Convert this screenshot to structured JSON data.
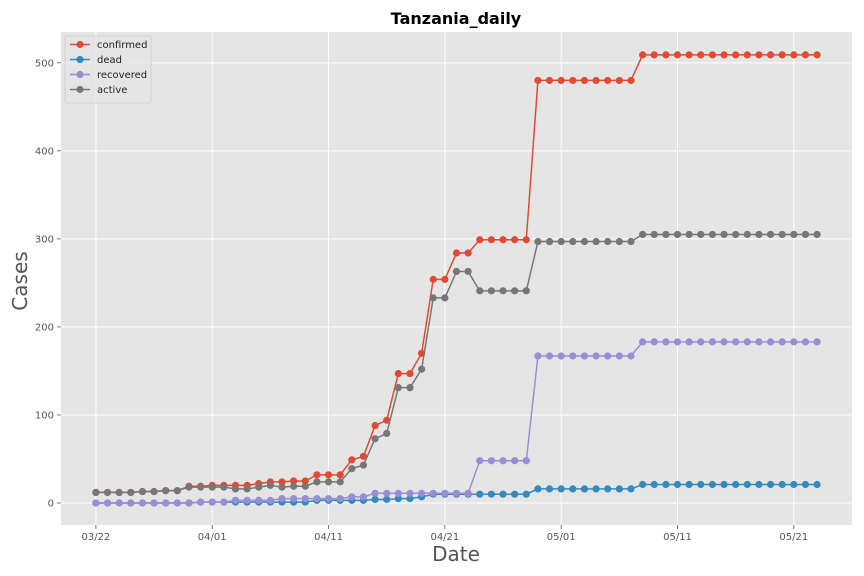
{
  "chart_data": {
    "type": "line",
    "title": "Tanzania_daily",
    "xlabel": "Date",
    "ylabel": "Cases",
    "x": [
      "2020-03-22",
      "2020-03-23",
      "2020-03-24",
      "2020-03-25",
      "2020-03-26",
      "2020-03-27",
      "2020-03-28",
      "2020-03-29",
      "2020-03-30",
      "2020-03-31",
      "2020-04-01",
      "2020-04-02",
      "2020-04-03",
      "2020-04-04",
      "2020-04-05",
      "2020-04-06",
      "2020-04-07",
      "2020-04-08",
      "2020-04-09",
      "2020-04-10",
      "2020-04-11",
      "2020-04-12",
      "2020-04-13",
      "2020-04-14",
      "2020-04-15",
      "2020-04-16",
      "2020-04-17",
      "2020-04-18",
      "2020-04-19",
      "2020-04-20",
      "2020-04-21",
      "2020-04-22",
      "2020-04-23",
      "2020-04-24",
      "2020-04-25",
      "2020-04-26",
      "2020-04-27",
      "2020-04-28",
      "2020-04-29",
      "2020-04-30",
      "2020-05-01",
      "2020-05-02",
      "2020-05-03",
      "2020-05-04",
      "2020-05-05",
      "2020-05-06",
      "2020-05-07",
      "2020-05-08",
      "2020-05-09",
      "2020-05-10",
      "2020-05-11",
      "2020-05-12",
      "2020-05-13",
      "2020-05-14",
      "2020-05-15",
      "2020-05-16",
      "2020-05-17",
      "2020-05-18",
      "2020-05-19",
      "2020-05-20",
      "2020-05-21",
      "2020-05-22",
      "2020-05-23"
    ],
    "x_ticks": [
      "03/22",
      "04/01",
      "04/11",
      "04/21",
      "05/01",
      "05/11",
      "05/21"
    ],
    "x_tick_dates": [
      "2020-03-22",
      "2020-04-01",
      "2020-04-11",
      "2020-04-21",
      "2020-05-01",
      "2020-05-11",
      "2020-05-21"
    ],
    "y_ticks": [
      0,
      100,
      200,
      300,
      400,
      500
    ],
    "ylim": [
      -25,
      535
    ],
    "xlim": [
      "2020-03-19",
      "2020-05-26"
    ],
    "grid": true,
    "legend": "top-left",
    "background": "#e5e5e5",
    "grid_color": "#ffffff",
    "series": [
      {
        "name": "confirmed",
        "color": "#e24a33",
        "values": [
          12,
          12,
          12,
          12,
          13,
          13,
          14,
          14,
          19,
          19,
          20,
          20,
          20,
          20,
          22,
          24,
          24,
          25,
          25,
          32,
          32,
          32,
          49,
          53,
          88,
          94,
          147,
          147,
          170,
          254,
          254,
          284,
          284,
          299,
          299,
          299,
          299,
          299,
          480,
          480,
          480,
          480,
          480,
          480,
          480,
          480,
          480,
          509,
          509,
          509,
          509,
          509,
          509,
          509,
          509,
          509,
          509,
          509,
          509,
          509,
          509,
          509,
          509
        ]
      },
      {
        "name": "dead",
        "color": "#348abd",
        "values": [
          0,
          0,
          0,
          0,
          0,
          0,
          0,
          0,
          0,
          1,
          1,
          1,
          1,
          1,
          1,
          1,
          1,
          1,
          1,
          3,
          3,
          3,
          3,
          3,
          4,
          4,
          5,
          5,
          7,
          10,
          10,
          10,
          10,
          10,
          10,
          10,
          10,
          10,
          16,
          16,
          16,
          16,
          16,
          16,
          16,
          16,
          16,
          21,
          21,
          21,
          21,
          21,
          21,
          21,
          21,
          21,
          21,
          21,
          21,
          21,
          21,
          21,
          21
        ]
      },
      {
        "name": "recovered",
        "color": "#988ed5",
        "values": [
          0,
          0,
          0,
          0,
          0,
          0,
          0,
          0,
          0,
          1,
          1,
          1,
          3,
          3,
          3,
          3,
          5,
          5,
          5,
          5,
          5,
          5,
          7,
          7,
          11,
          11,
          11,
          11,
          11,
          11,
          11,
          11,
          11,
          48,
          48,
          48,
          48,
          48,
          167,
          167,
          167,
          167,
          167,
          167,
          167,
          167,
          167,
          183,
          183,
          183,
          183,
          183,
          183,
          183,
          183,
          183,
          183,
          183,
          183,
          183,
          183,
          183,
          183
        ]
      },
      {
        "name": "active",
        "color": "#777777",
        "values": [
          12,
          12,
          12,
          12,
          13,
          13,
          14,
          14,
          18,
          18,
          18,
          18,
          16,
          16,
          18,
          20,
          18,
          19,
          19,
          24,
          24,
          24,
          39,
          43,
          73,
          79,
          131,
          131,
          152,
          233,
          233,
          263,
          263,
          241,
          241,
          241,
          241,
          241,
          297,
          297,
          297,
          297,
          297,
          297,
          297,
          297,
          297,
          305,
          305,
          305,
          305,
          305,
          305,
          305,
          305,
          305,
          305,
          305,
          305,
          305,
          305,
          305,
          305
        ]
      }
    ]
  }
}
